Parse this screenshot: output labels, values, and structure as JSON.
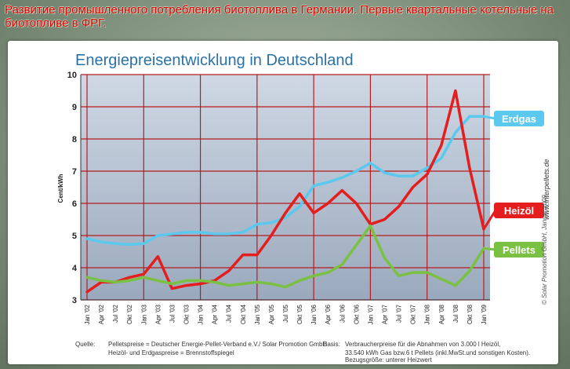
{
  "slide": {
    "title": "Развитие промышленного потребления биотоплива в Германии. Первые квартальные котельные на биотопливе в ФРГ."
  },
  "footer": {
    "source_label": "Quelle:",
    "source_line1": "Pelletspreise = Deutscher Energie-Pellet-Verband e.V./ Solar Promotion GmbH",
    "source_line2": "Heizöl- und Erdgaspreise = Brennstoffspiegel",
    "basis_label": "Basis:",
    "basis_line1": "Verbraucherpreise für die Abnahmen von 3.000 l Heizöl,",
    "basis_line2": "33.540 kWh Gas bzw.6 t Pellets (inkl.MwSt.und sonstigen Kosten).",
    "basis_line3": "Bezugsgröße: unterer Heizwert",
    "copyright": "© Solar Promotion GmbH, Januar 2009",
    "website": "www.interpellets.de"
  },
  "chart_data": {
    "type": "line",
    "title": "Energiepreisentwicklung in Deutschland",
    "xlabel": "",
    "ylabel": "Cent/kWh",
    "ylim": [
      3,
      10
    ],
    "yticks": [
      3,
      4,
      5,
      6,
      7,
      8,
      9,
      10
    ],
    "grid": true,
    "x_ticks": [
      "Jan '02",
      "Apr '02",
      "Jul '02",
      "Okt '02",
      "Jan '03",
      "Apr '03",
      "Jul '03",
      "Okt '03",
      "Jan '04",
      "Apr '04",
      "Jul '04",
      "Okt '04",
      "Jan '05",
      "Apr '05",
      "Jul '05",
      "Okt '05",
      "Jan '06",
      "Apr '06",
      "Jul '06",
      "Okt '06",
      "Jan '07",
      "Apr '07",
      "Jul '07",
      "Okt '07",
      "Jan '08",
      "Apr '08",
      "Jul '08",
      "Okt '08",
      "Jan '09"
    ],
    "series": [
      {
        "name": "Erdgas",
        "color": "#5bc8ee",
        "values": [
          4.9,
          4.8,
          4.75,
          4.72,
          4.75,
          5.0,
          5.05,
          5.1,
          5.1,
          5.05,
          5.05,
          5.1,
          5.35,
          5.4,
          5.55,
          5.9,
          6.55,
          6.65,
          6.8,
          7.0,
          7.25,
          6.95,
          6.85,
          6.85,
          7.1,
          7.4,
          8.2,
          8.7,
          8.7
        ]
      },
      {
        "name": "Heizöl",
        "color": "#e41e1e",
        "values": [
          3.25,
          3.55,
          3.55,
          3.7,
          3.8,
          4.35,
          3.35,
          3.45,
          3.5,
          3.6,
          3.9,
          4.4,
          4.4,
          5.0,
          5.7,
          6.3,
          5.7,
          6.0,
          6.4,
          6.0,
          5.35,
          5.5,
          5.9,
          6.5,
          6.9,
          7.8,
          9.5,
          7.1,
          5.2
        ]
      },
      {
        "name": "Pellets",
        "color": "#7ac143",
        "values": [
          3.7,
          3.6,
          3.55,
          3.6,
          3.7,
          3.6,
          3.5,
          3.6,
          3.6,
          3.55,
          3.45,
          3.5,
          3.55,
          3.5,
          3.4,
          3.6,
          3.75,
          3.85,
          4.1,
          4.7,
          5.3,
          4.3,
          3.75,
          3.85,
          3.85,
          3.65,
          3.45,
          3.9,
          4.6
        ]
      }
    ]
  }
}
